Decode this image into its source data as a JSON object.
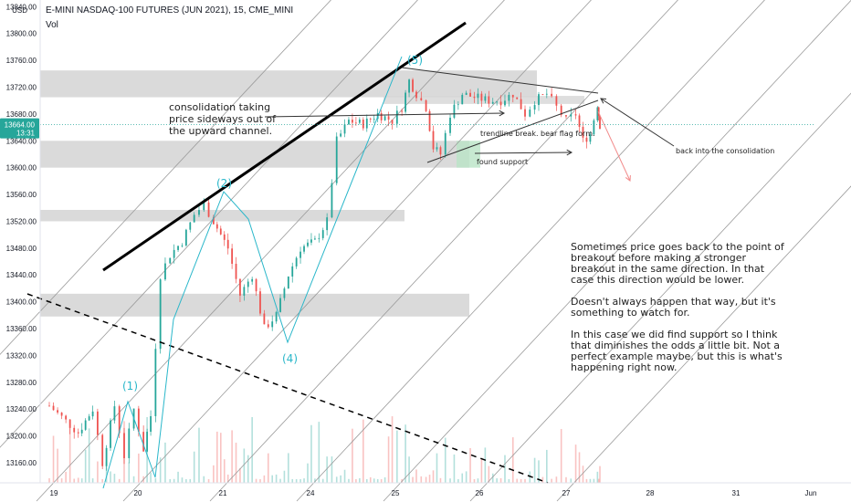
{
  "header": {
    "symbol": "E-MINI NASDAQ-100 FUTURES (JUN 2021), 15, CME_MINI",
    "vol_label": "Vol"
  },
  "axis": {
    "currency": "USD",
    "price_ticks": [
      "13840.00",
      "13800.00",
      "13760.00",
      "13720.00",
      "13680.00",
      "13640.00",
      "13600.00",
      "13560.00",
      "13520.00",
      "13480.00",
      "13440.00",
      "13400.00",
      "13360.00",
      "13320.00",
      "13280.00",
      "13240.00",
      "13200.00",
      "13160.00"
    ],
    "last_price": "13664.00",
    "countdown": "13:31",
    "date_ticks": [
      "19",
      "20",
      "21",
      "24",
      "25",
      "26",
      "27",
      "28",
      "31",
      "Jun"
    ]
  },
  "annotations": {
    "consolidation": "consolidation taking\nprice sideways out of\nthe upward channel.",
    "trendline": "trendline break. bear flag form.",
    "support": "found support",
    "back": "back into the consolidation",
    "commentary": "Sometimes price goes back to the point of\nbreakout before making a stronger\nbreakout in the same direction. In that\ncase this direction would be lower.\n\nDoesn't always happen that way, but it's\nsomething to watch for.\n\nIn this case we did find support so I think\nthat diminishes the odds a little bit. Not a\nperfect example maybe, but this is what's\nhappening right now.",
    "waves": [
      "(1)",
      "(2)",
      "(4)",
      "(5)"
    ]
  },
  "colors": {
    "up": "#26a69a",
    "down": "#ef5350",
    "wave": "#2ab7ca",
    "zone": "#d6d6d6",
    "arrow_red": "#f28b8b"
  },
  "chart_data": {
    "type": "candlestick",
    "title": "E-MINI NASDAQ-100 FUTURES (JUN 2021), 15, CME_MINI",
    "ylim": [
      13130,
      13850
    ],
    "x_categories": [
      "19",
      "20",
      "21",
      "24",
      "25",
      "26",
      "27",
      "28",
      "31",
      "Jun"
    ],
    "price_path": [
      [
        0,
        13245
      ],
      [
        0.6,
        13205
      ],
      [
        0.9,
        13240
      ],
      [
        1.1,
        13160
      ],
      [
        1.35,
        13245
      ],
      [
        1.55,
        13170
      ],
      [
        1.75,
        13240
      ],
      [
        1.95,
        13180
      ],
      [
        2.1,
        13230
      ],
      [
        2.3,
        13440
      ],
      [
        2.5,
        13470
      ],
      [
        2.75,
        13490
      ],
      [
        3.0,
        13530
      ],
      [
        3.2,
        13545
      ],
      [
        3.4,
        13520
      ],
      [
        3.7,
        13480
      ],
      [
        3.95,
        13410
      ],
      [
        4.2,
        13440
      ],
      [
        4.45,
        13360
      ],
      [
        4.7,
        13380
      ],
      [
        4.95,
        13440
      ],
      [
        5.2,
        13480
      ],
      [
        5.5,
        13490
      ],
      [
        5.75,
        13520
      ],
      [
        5.95,
        13640
      ],
      [
        6.2,
        13670
      ],
      [
        6.5,
        13665
      ],
      [
        6.8,
        13680
      ],
      [
        7.1,
        13670
      ],
      [
        7.3,
        13690
      ],
      [
        7.45,
        13730
      ],
      [
        7.6,
        13710
      ],
      [
        7.8,
        13690
      ],
      [
        7.95,
        13630
      ],
      [
        8.1,
        13620
      ],
      [
        8.3,
        13680
      ],
      [
        8.55,
        13710
      ],
      [
        8.8,
        13705
      ],
      [
        9.1,
        13700
      ],
      [
        9.35,
        13700
      ],
      [
        9.6,
        13710
      ],
      [
        9.85,
        13680
      ],
      [
        10.05,
        13700
      ],
      [
        10.3,
        13710
      ],
      [
        10.5,
        13690
      ],
      [
        10.7,
        13670
      ],
      [
        10.9,
        13680
      ],
      [
        11.05,
        13640
      ],
      [
        11.2,
        13650
      ],
      [
        11.35,
        13695
      ],
      [
        11.4,
        13664
      ]
    ],
    "last_price": 13664,
    "zones": [
      {
        "from": 13705,
        "to": 13745
      },
      {
        "from": 13695,
        "to": 13707
      },
      {
        "from": 13600,
        "to": 13640
      },
      {
        "from": 13520,
        "to": 13537
      },
      {
        "from": 13378,
        "to": 13412
      }
    ],
    "elliott_waves": [
      {
        "label": "(1)",
        "price": 13260
      },
      {
        "label": "(2)",
        "price": 13555
      },
      {
        "label": "(4)",
        "price": 13345
      },
      {
        "label": "(5)",
        "price": 13745
      }
    ]
  }
}
